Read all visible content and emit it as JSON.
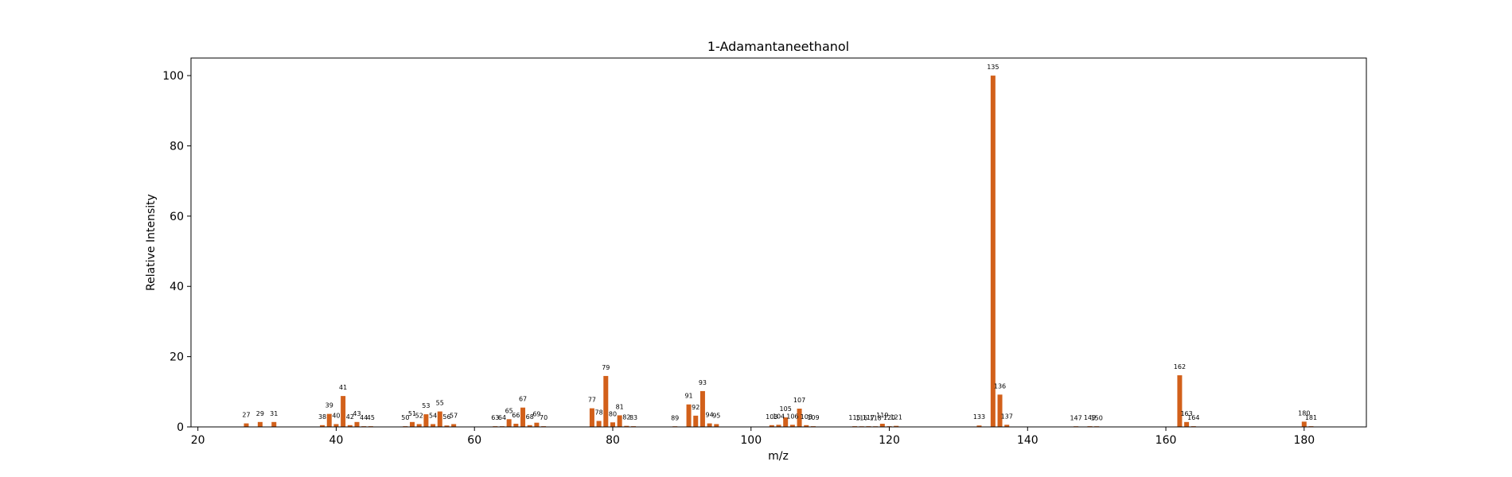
{
  "chart_data": {
    "type": "bar",
    "title": "1-Adamantaneethanol",
    "xlabel": "m/z",
    "ylabel": "Relative Intensity",
    "xlim": [
      19,
      189
    ],
    "ylim": [
      0,
      105
    ],
    "xticks": [
      20,
      40,
      60,
      80,
      100,
      120,
      140,
      160,
      180
    ],
    "yticks": [
      0,
      20,
      40,
      60,
      80,
      100
    ],
    "grid": false,
    "legend": "none",
    "bar_color": "#d2601a",
    "peaks": [
      {
        "mz": 27,
        "intensity": 1.0
      },
      {
        "mz": 29,
        "intensity": 1.4
      },
      {
        "mz": 31,
        "intensity": 1.4
      },
      {
        "mz": 38,
        "intensity": 0.5
      },
      {
        "mz": 39,
        "intensity": 3.7
      },
      {
        "mz": 40,
        "intensity": 0.8
      },
      {
        "mz": 41,
        "intensity": 8.8
      },
      {
        "mz": 42,
        "intensity": 0.5
      },
      {
        "mz": 43,
        "intensity": 1.4
      },
      {
        "mz": 44,
        "intensity": 0.2
      },
      {
        "mz": 45,
        "intensity": 0.2
      },
      {
        "mz": 50,
        "intensity": 0.2
      },
      {
        "mz": 51,
        "intensity": 1.4
      },
      {
        "mz": 52,
        "intensity": 0.8
      },
      {
        "mz": 53,
        "intensity": 3.6
      },
      {
        "mz": 54,
        "intensity": 0.8
      },
      {
        "mz": 55,
        "intensity": 4.4
      },
      {
        "mz": 56,
        "intensity": 0.4
      },
      {
        "mz": 57,
        "intensity": 0.8
      },
      {
        "mz": 63,
        "intensity": 0.2
      },
      {
        "mz": 64,
        "intensity": 0.2
      },
      {
        "mz": 65,
        "intensity": 2.2
      },
      {
        "mz": 66,
        "intensity": 0.9
      },
      {
        "mz": 67,
        "intensity": 5.5
      },
      {
        "mz": 68,
        "intensity": 0.5
      },
      {
        "mz": 69,
        "intensity": 1.2
      },
      {
        "mz": 70,
        "intensity": 0.2
      },
      {
        "mz": 77,
        "intensity": 5.3
      },
      {
        "mz": 78,
        "intensity": 1.7
      },
      {
        "mz": 79,
        "intensity": 14.5
      },
      {
        "mz": 80,
        "intensity": 1.3
      },
      {
        "mz": 81,
        "intensity": 3.3
      },
      {
        "mz": 82,
        "intensity": 0.3
      },
      {
        "mz": 83,
        "intensity": 0.2
      },
      {
        "mz": 89,
        "intensity": 0.1
      },
      {
        "mz": 91,
        "intensity": 6.4
      },
      {
        "mz": 92,
        "intensity": 3.2
      },
      {
        "mz": 93,
        "intensity": 10.2
      },
      {
        "mz": 94,
        "intensity": 1.0
      },
      {
        "mz": 95,
        "intensity": 0.8
      },
      {
        "mz": 103,
        "intensity": 0.5
      },
      {
        "mz": 104,
        "intensity": 0.6
      },
      {
        "mz": 105,
        "intensity": 2.7
      },
      {
        "mz": 106,
        "intensity": 0.6
      },
      {
        "mz": 107,
        "intensity": 5.2
      },
      {
        "mz": 108,
        "intensity": 0.5
      },
      {
        "mz": 109,
        "intensity": 0.2
      },
      {
        "mz": 115,
        "intensity": 0.2
      },
      {
        "mz": 116,
        "intensity": 0.1
      },
      {
        "mz": 117,
        "intensity": 0.2
      },
      {
        "mz": 118,
        "intensity": 0.1
      },
      {
        "mz": 119,
        "intensity": 0.9
      },
      {
        "mz": 120,
        "intensity": 0.2
      },
      {
        "mz": 121,
        "intensity": 0.3
      },
      {
        "mz": 133,
        "intensity": 0.4
      },
      {
        "mz": 135,
        "intensity": 100.0
      },
      {
        "mz": 136,
        "intensity": 9.2
      },
      {
        "mz": 137,
        "intensity": 0.6
      },
      {
        "mz": 147,
        "intensity": 0.1
      },
      {
        "mz": 149,
        "intensity": 0.2
      },
      {
        "mz": 150,
        "intensity": 0.1
      },
      {
        "mz": 162,
        "intensity": 14.7
      },
      {
        "mz": 163,
        "intensity": 1.4
      },
      {
        "mz": 164,
        "intensity": 0.2
      },
      {
        "mz": 180,
        "intensity": 1.5
      },
      {
        "mz": 181,
        "intensity": 0.2
      }
    ]
  }
}
